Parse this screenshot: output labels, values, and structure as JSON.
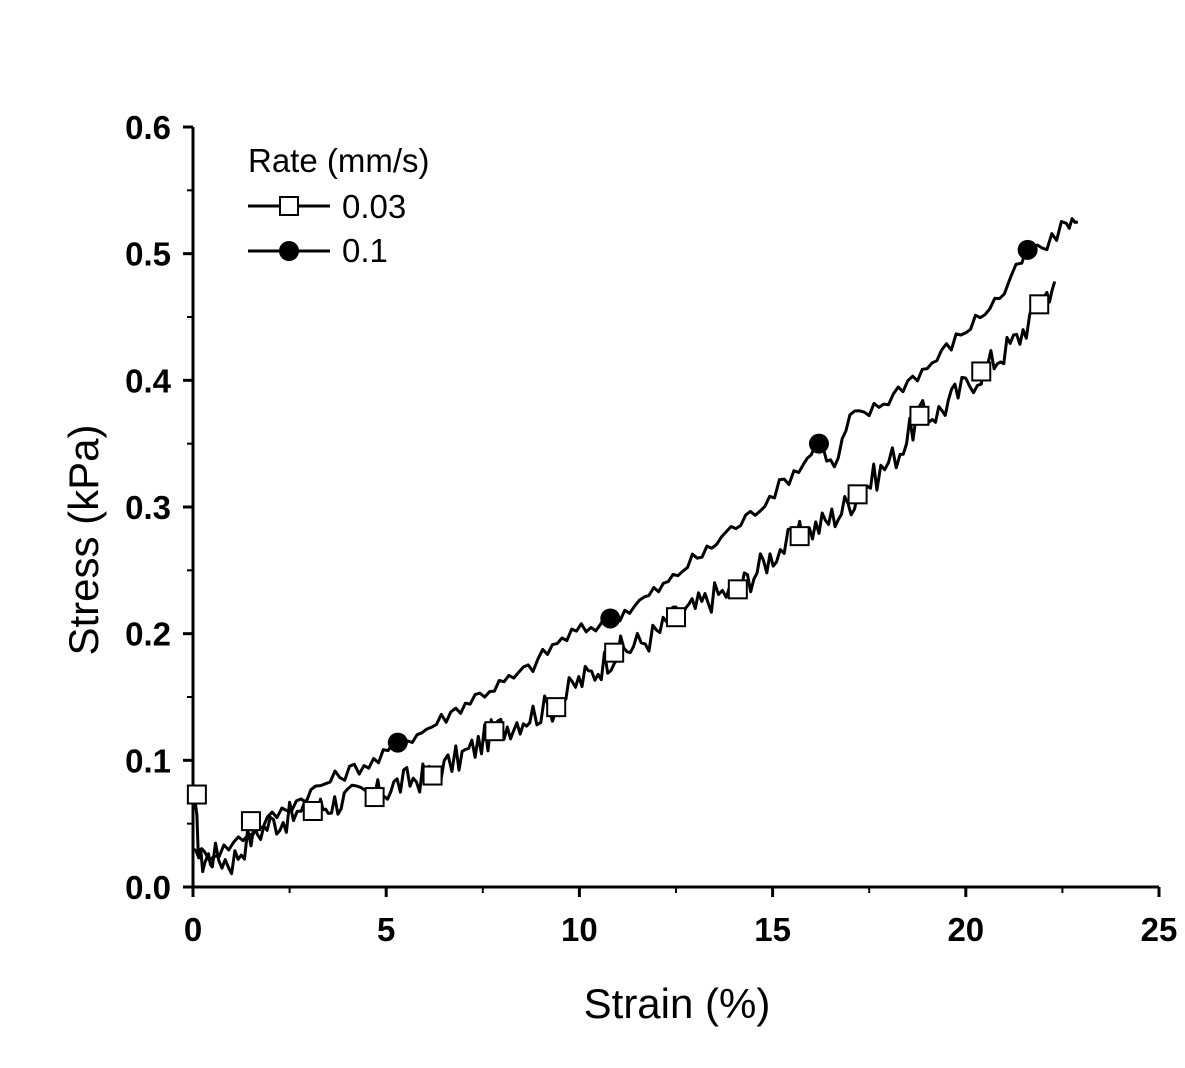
{
  "chart_data": {
    "type": "line",
    "title": "",
    "xlabel": "Strain (%)",
    "ylabel": "Stress (kPa)",
    "xlim": [
      0,
      25
    ],
    "ylim": [
      0,
      0.6
    ],
    "x_ticks": [
      "0",
      "5",
      "10",
      "15",
      "20",
      "25"
    ],
    "y_ticks": [
      "0.0",
      "0.1",
      "0.2",
      "0.3",
      "0.4",
      "0.5",
      "0.6"
    ],
    "grid": false,
    "legend": {
      "title": "Rate (mm/s)",
      "placement": "top-left"
    },
    "line_color": "#000000",
    "series": [
      {
        "name": "0.03",
        "marker": "open-square",
        "x": [
          0,
          0.2,
          0.5,
          1.0,
          1.5,
          2.0,
          2.5,
          3.1,
          3.5,
          4.0,
          4.7,
          5.2,
          5.7,
          6.2,
          6.8,
          7.3,
          7.8,
          8.3,
          8.8,
          9.4,
          9.9,
          10.4,
          10.9,
          11.4,
          12.0,
          12.5,
          13.0,
          13.5,
          14.1,
          14.6,
          15.1,
          15.7,
          16.2,
          16.7,
          17.2,
          17.7,
          18.3,
          18.8,
          19.3,
          19.8,
          20.4,
          20.9,
          21.4,
          21.9,
          22.3
        ],
        "y": [
          0.073,
          0.02,
          0.025,
          0.02,
          0.04,
          0.05,
          0.055,
          0.06,
          0.065,
          0.07,
          0.072,
          0.08,
          0.085,
          0.088,
          0.1,
          0.11,
          0.123,
          0.13,
          0.137,
          0.143,
          0.16,
          0.17,
          0.185,
          0.19,
          0.2,
          0.213,
          0.22,
          0.23,
          0.235,
          0.25,
          0.265,
          0.277,
          0.285,
          0.295,
          0.31,
          0.325,
          0.345,
          0.372,
          0.375,
          0.39,
          0.407,
          0.42,
          0.435,
          0.46,
          0.478
        ],
        "marker_x": [
          0.1,
          1.5,
          3.1,
          4.7,
          6.2,
          7.8,
          9.4,
          10.9,
          12.5,
          14.1,
          15.7,
          17.2,
          18.8,
          20.4,
          21.9
        ],
        "marker_y": [
          0.073,
          0.052,
          0.06,
          0.071,
          0.088,
          0.123,
          0.142,
          0.185,
          0.213,
          0.235,
          0.277,
          0.31,
          0.372,
          0.407,
          0.46
        ]
      },
      {
        "name": "0.1",
        "marker": "filled-circle",
        "x": [
          0,
          0.3,
          0.8,
          1.3,
          1.8,
          2.3,
          2.8,
          3.3,
          3.8,
          4.3,
          4.8,
          5.3,
          5.8,
          6.3,
          6.8,
          7.3,
          7.8,
          8.3,
          8.8,
          9.3,
          9.8,
          10.3,
          10.8,
          11.3,
          11.8,
          12.3,
          12.8,
          13.3,
          13.8,
          14.3,
          14.8,
          15.3,
          15.8,
          16.2,
          16.6,
          17.0,
          17.5,
          18.0,
          18.5,
          19.0,
          19.5,
          20.0,
          20.5,
          21.0,
          21.6,
          22.1,
          22.6,
          22.9
        ],
        "y": [
          0.03,
          0.025,
          0.03,
          0.04,
          0.05,
          0.06,
          0.07,
          0.08,
          0.088,
          0.095,
          0.1,
          0.113,
          0.12,
          0.13,
          0.14,
          0.15,
          0.158,
          0.165,
          0.175,
          0.19,
          0.2,
          0.205,
          0.212,
          0.22,
          0.23,
          0.24,
          0.255,
          0.265,
          0.28,
          0.29,
          0.305,
          0.32,
          0.335,
          0.35,
          0.33,
          0.37,
          0.375,
          0.385,
          0.4,
          0.41,
          0.425,
          0.44,
          0.455,
          0.47,
          0.502,
          0.505,
          0.525,
          0.525
        ],
        "marker_x": [
          5.3,
          10.8,
          16.2,
          21.6
        ],
        "marker_y": [
          0.114,
          0.212,
          0.35,
          0.503
        ]
      }
    ]
  }
}
